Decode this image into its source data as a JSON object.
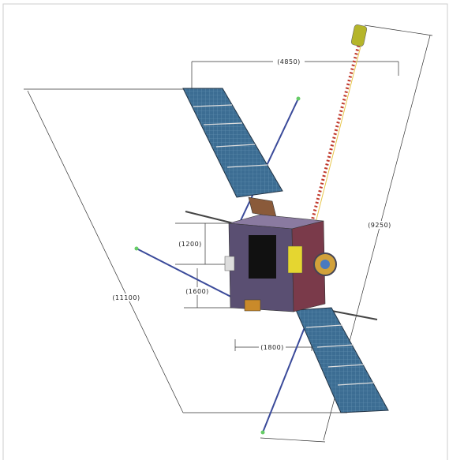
{
  "dimensions": {
    "overall_span_length": "(11100)",
    "panel_width": "(4850)",
    "boom_length": "(9250)",
    "body_height_upper": "(1200)",
    "body_height_lower": "(1600)",
    "body_width": "(1800)"
  }
}
